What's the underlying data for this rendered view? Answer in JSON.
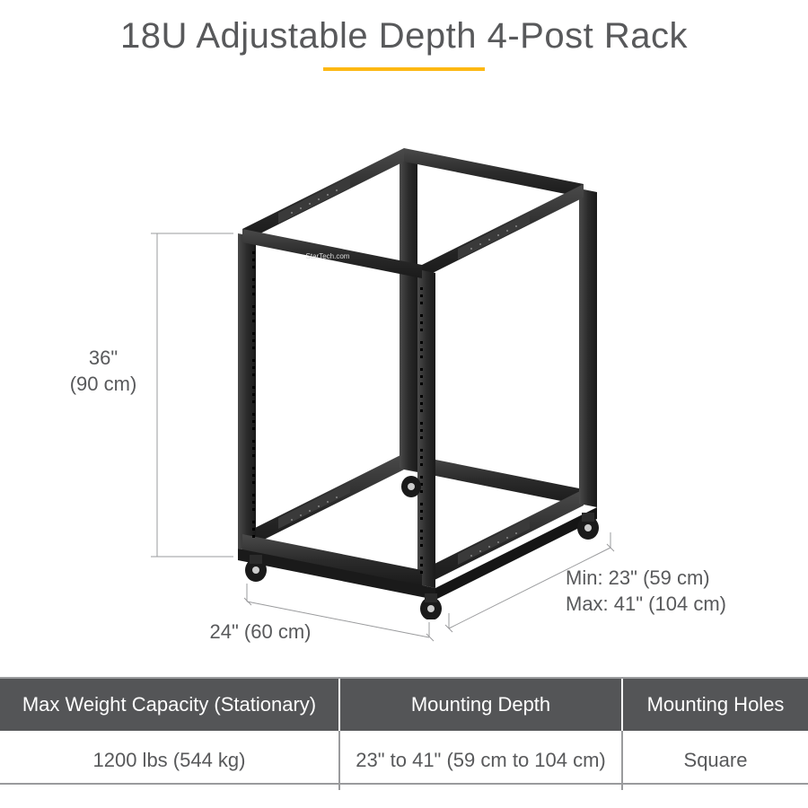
{
  "title": "18U Adjustable Depth 4-Post Rack",
  "accent_color": "#fdb813",
  "text_color": "#58595b",
  "header_bg": "#545557",
  "divider_color": "#9a9b9d",
  "dimensions": {
    "height": "36\"\n(90 cm)",
    "width": "24\" (60 cm)",
    "depth": "Min: 23\" (59 cm)\nMax: 41\" (104 cm)"
  },
  "brand_label": "StarTech.com",
  "specs": {
    "headers": [
      "Max Weight Capacity (Stationary)",
      "Mounting Depth",
      "Mounting Holes"
    ],
    "values": [
      "1200 lbs (544 kg)",
      "23\" to 41\" (59 cm to 104 cm)",
      "Square"
    ]
  },
  "rack": {
    "frame_color": "#2b2b2b",
    "frame_dark": "#1a1a1a",
    "frame_light": "#4a4a4a",
    "caster_color": "#1a1a1a",
    "caster_hub": "#cccccc",
    "dim_line_color": "#9a9b9d",
    "dim_line_width": 1
  }
}
